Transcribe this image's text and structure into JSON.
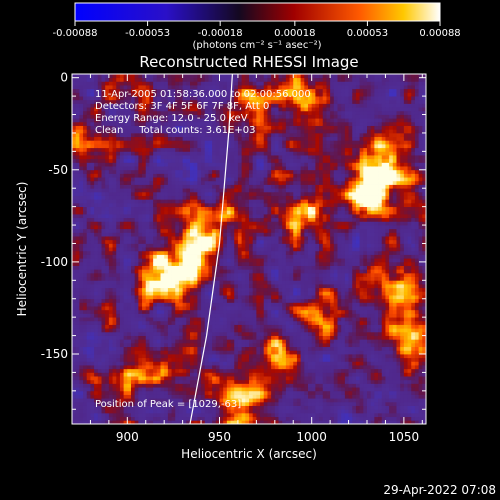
{
  "chart_data": {
    "type": "heatmap",
    "title": "Reconstructed RHESSI Image",
    "xlabel": "Heliocentric X (arcsec)",
    "ylabel": "Heliocentric Y (arcsec)",
    "xlim": [
      870,
      1062
    ],
    "ylim": [
      -188,
      2
    ],
    "x_ticks": [
      900,
      950,
      1000,
      1050
    ],
    "y_ticks": [
      0,
      -50,
      -100,
      -150
    ],
    "colorbar": {
      "ticks": [
        "-0.00088",
        "-0.00053",
        "-0.00018",
        "0.00018",
        "0.00053",
        "0.00088"
      ],
      "units": "(photons cm⁻² s⁻¹ asec⁻²)",
      "range": [
        -0.00088,
        0.00088
      ]
    },
    "annotations": {
      "time_range": "11-Apr-2005 01:58:36.000 to 02:00:56.000",
      "detectors": "Detectors: 3F 4F 5F 6F 7F 8F, Att 0",
      "energy": "Energy Range: 12.0 - 25.0 keV",
      "clean": "Clean     Total counts: 3.61E+03",
      "peak": "Position of Peak = [1029,-63]"
    },
    "peak_position": [
      1029,
      -63
    ],
    "limb_points": [
      [
        957,
        2
      ],
      [
        955,
        -30
      ],
      [
        950,
        -90
      ],
      [
        943,
        -140
      ],
      [
        934,
        -188
      ]
    ],
    "sources": [
      {
        "x": 1030,
        "y": -58,
        "intensity": 0.00088
      },
      {
        "x": 1042,
        "y": -45,
        "intensity": 0.0007
      },
      {
        "x": 918,
        "y": -108,
        "intensity": 0.00082
      },
      {
        "x": 935,
        "y": -100,
        "intensity": 0.0006
      },
      {
        "x": 948,
        "y": -82,
        "intensity": 0.00055
      },
      {
        "x": 995,
        "y": -10,
        "intensity": 0.0006
      },
      {
        "x": 968,
        "y": -20,
        "intensity": 0.0005
      },
      {
        "x": 1000,
        "y": -75,
        "intensity": 0.00055
      },
      {
        "x": 1005,
        "y": -128,
        "intensity": 0.0005
      },
      {
        "x": 1052,
        "y": -145,
        "intensity": 0.00052
      },
      {
        "x": 960,
        "y": -178,
        "intensity": 0.0006
      },
      {
        "x": 930,
        "y": -155,
        "intensity": 0.00045
      },
      {
        "x": 905,
        "y": -160,
        "intensity": 0.0004
      },
      {
        "x": 1050,
        "y": -110,
        "intensity": 0.0004
      },
      {
        "x": 880,
        "y": -40,
        "intensity": 0.00035
      },
      {
        "x": 905,
        "y": -5,
        "intensity": 0.0003
      },
      {
        "x": 978,
        "y": -150,
        "intensity": 0.00035
      }
    ]
  },
  "footer": {
    "timestamp": "29-Apr-2022 07:08"
  }
}
